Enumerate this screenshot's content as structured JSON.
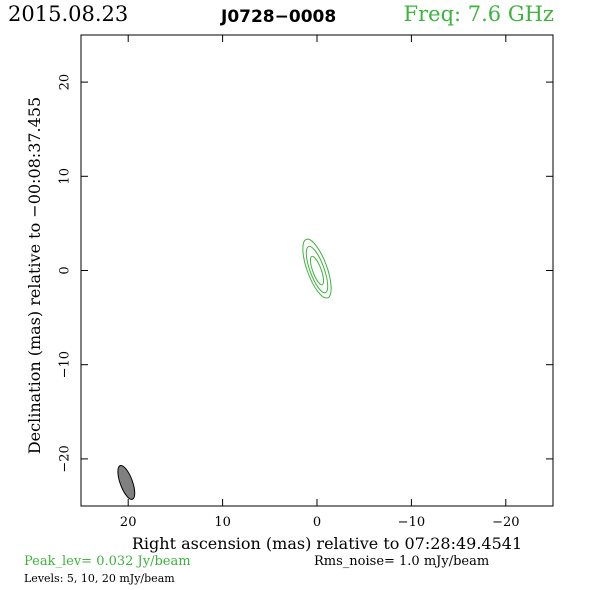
{
  "header": {
    "date": "2015.08.23",
    "source": "J0728−0008",
    "frequency": "Freq: 7.6 GHz"
  },
  "footer": {
    "peak": "Peak_lev=  0.032 Jy/beam",
    "rms": "Rms_noise=  1.0 mJy/beam",
    "levels": "Levels:  5,  10,  20 mJy/beam"
  },
  "colors": {
    "contour": "#3cb43c",
    "beam_fill": "#808080",
    "axes": "#000000"
  },
  "chart_data": {
    "type": "contour",
    "title": "",
    "xlabel": "Right ascension (mas) relative to 07:28:49.4541",
    "ylabel": "Declination (mas) relative to −00:08:37.455",
    "xlim": [
      25,
      -25
    ],
    "ylim": [
      -25,
      25
    ],
    "xticks": [
      20,
      10,
      0,
      -10,
      -20
    ],
    "yticks": [
      -20,
      -10,
      0,
      10,
      20
    ],
    "xtick_labels": [
      "20",
      "10",
      "0",
      "−10",
      "−20"
    ],
    "ytick_labels": [
      "−20",
      "−10",
      "0",
      "10",
      "20"
    ],
    "contour_levels_mJy": [
      5,
      10,
      20
    ],
    "contours": [
      {
        "level_mJy": 5,
        "center": [
          0.0,
          0.2
        ],
        "major": 3.3,
        "minor": 1.05,
        "pa_deg": 160
      },
      {
        "level_mJy": 10,
        "center": [
          0.0,
          0.1
        ],
        "major": 2.6,
        "minor": 0.75,
        "pa_deg": 160
      },
      {
        "level_mJy": 20,
        "center": [
          0.0,
          0.0
        ],
        "major": 1.6,
        "minor": 0.45,
        "pa_deg": 160
      }
    ],
    "beam": {
      "center": [
        20.2,
        -22.5
      ],
      "major": 1.9,
      "minor": 0.65,
      "pa_deg": 160
    }
  }
}
